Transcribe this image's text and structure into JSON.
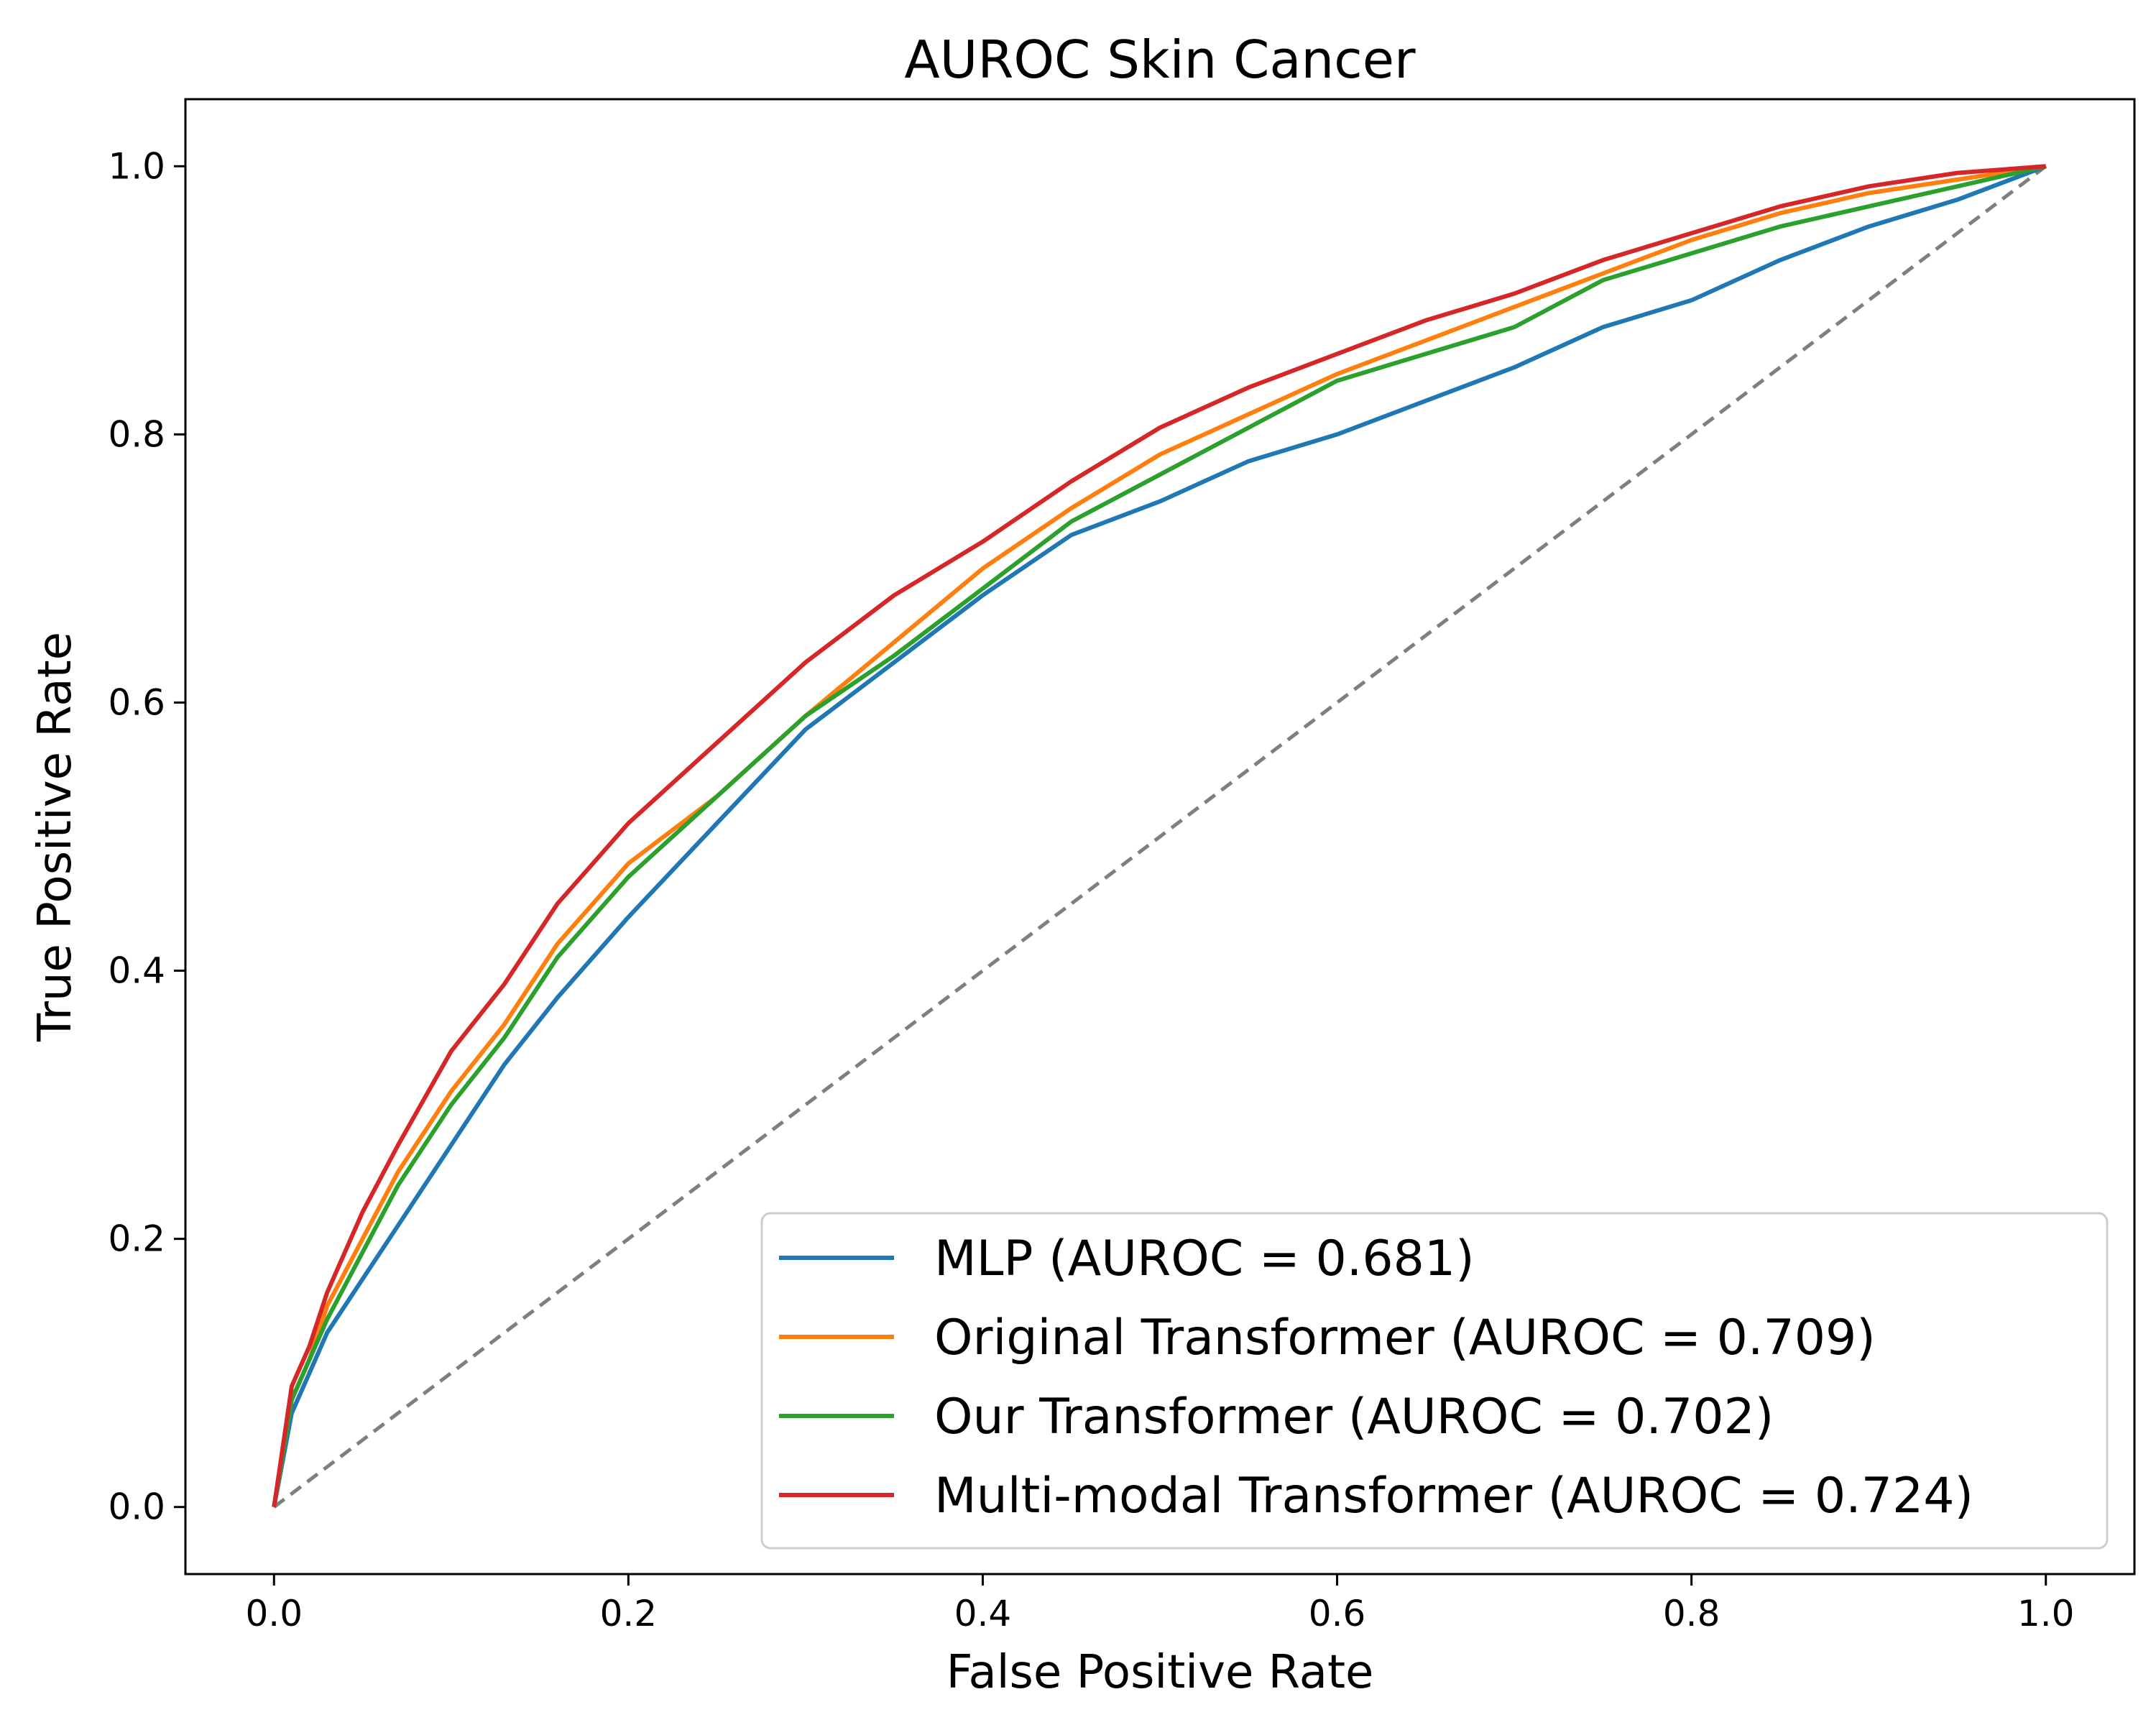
{
  "chart_data": {
    "type": "line",
    "title": "AUROC Skin Cancer",
    "xlabel": "False Positive Rate",
    "ylabel": "True Positive Rate",
    "xlim": [
      -0.05,
      1.05
    ],
    "ylim": [
      -0.05,
      1.05
    ],
    "xticks": [
      "0.0",
      "0.2",
      "0.4",
      "0.6",
      "0.8",
      "1.0"
    ],
    "yticks": [
      "0.0",
      "0.2",
      "0.4",
      "0.6",
      "0.8",
      "1.0"
    ],
    "xtick_values": [
      0.0,
      0.2,
      0.4,
      0.6,
      0.8,
      1.0
    ],
    "ytick_values": [
      0.0,
      0.2,
      0.4,
      0.6,
      0.8,
      1.0
    ],
    "grid": false,
    "legend_position": "lower-right",
    "chance_line": {
      "x": [
        0,
        1
      ],
      "y": [
        0,
        1
      ],
      "color": "#7f7f7f",
      "style": "dashed"
    },
    "series": [
      {
        "name": "MLP (AUROC = 0.681)",
        "color": "#1f77b4",
        "x": [
          0,
          0.01,
          0.02,
          0.03,
          0.05,
          0.07,
          0.1,
          0.13,
          0.16,
          0.2,
          0.25,
          0.3,
          0.35,
          0.4,
          0.45,
          0.5,
          0.55,
          0.6,
          0.65,
          0.7,
          0.75,
          0.8,
          0.85,
          0.9,
          0.95,
          1.0
        ],
        "y": [
          0,
          0.07,
          0.1,
          0.13,
          0.17,
          0.21,
          0.27,
          0.33,
          0.38,
          0.44,
          0.51,
          0.58,
          0.63,
          0.68,
          0.725,
          0.75,
          0.78,
          0.8,
          0.825,
          0.85,
          0.88,
          0.9,
          0.93,
          0.955,
          0.975,
          1.0
        ]
      },
      {
        "name": "Original Transformer (AUROC = 0.709)",
        "color": "#ff7f0e",
        "x": [
          0,
          0.01,
          0.02,
          0.03,
          0.05,
          0.07,
          0.1,
          0.13,
          0.16,
          0.2,
          0.25,
          0.3,
          0.35,
          0.4,
          0.45,
          0.5,
          0.55,
          0.6,
          0.65,
          0.7,
          0.75,
          0.8,
          0.85,
          0.9,
          0.95,
          1.0
        ],
        "y": [
          0,
          0.08,
          0.11,
          0.15,
          0.2,
          0.25,
          0.31,
          0.36,
          0.42,
          0.48,
          0.53,
          0.59,
          0.645,
          0.7,
          0.745,
          0.785,
          0.815,
          0.845,
          0.87,
          0.895,
          0.92,
          0.945,
          0.965,
          0.98,
          0.99,
          1.0
        ]
      },
      {
        "name": "Our Transformer (AUROC = 0.702)",
        "color": "#2ca02c",
        "x": [
          0,
          0.01,
          0.02,
          0.03,
          0.05,
          0.07,
          0.1,
          0.13,
          0.16,
          0.2,
          0.25,
          0.3,
          0.35,
          0.4,
          0.45,
          0.5,
          0.55,
          0.6,
          0.65,
          0.7,
          0.75,
          0.8,
          0.85,
          0.9,
          0.95,
          1.0
        ],
        "y": [
          0,
          0.08,
          0.11,
          0.14,
          0.19,
          0.24,
          0.3,
          0.35,
          0.41,
          0.47,
          0.53,
          0.59,
          0.635,
          0.685,
          0.735,
          0.77,
          0.805,
          0.84,
          0.86,
          0.88,
          0.915,
          0.935,
          0.955,
          0.97,
          0.985,
          1.0
        ]
      },
      {
        "name": "Multi-modal Transformer (AUROC = 0.724)",
        "color": "#d62728",
        "x": [
          0,
          0.01,
          0.02,
          0.03,
          0.05,
          0.07,
          0.1,
          0.13,
          0.16,
          0.2,
          0.25,
          0.3,
          0.35,
          0.4,
          0.45,
          0.5,
          0.55,
          0.6,
          0.65,
          0.7,
          0.75,
          0.8,
          0.85,
          0.9,
          0.95,
          1.0
        ],
        "y": [
          0,
          0.09,
          0.12,
          0.16,
          0.22,
          0.27,
          0.34,
          0.39,
          0.45,
          0.51,
          0.57,
          0.63,
          0.68,
          0.72,
          0.765,
          0.805,
          0.835,
          0.86,
          0.885,
          0.905,
          0.93,
          0.95,
          0.97,
          0.985,
          0.995,
          1.0
        ]
      }
    ]
  }
}
